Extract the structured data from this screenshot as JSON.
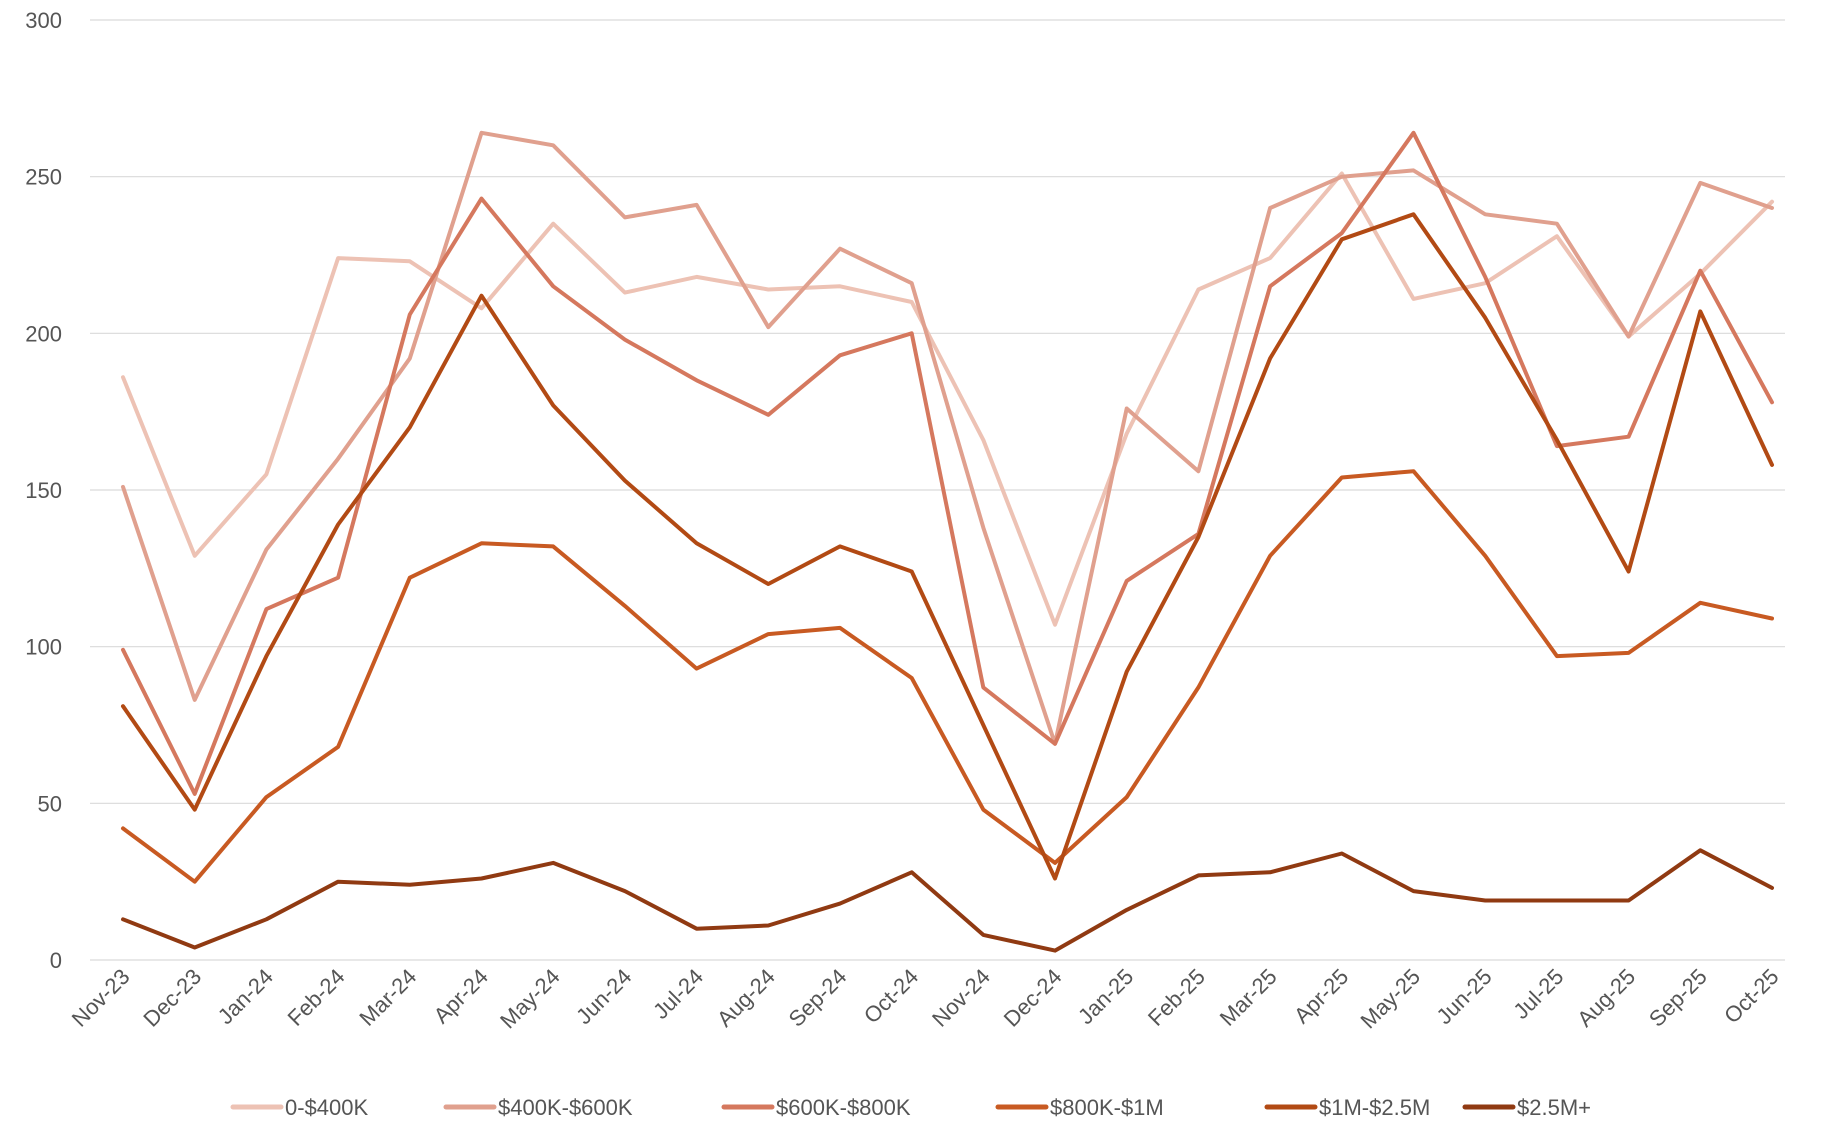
{
  "chart_data": {
    "type": "line",
    "title": "",
    "xlabel": "",
    "ylabel": "",
    "ylim": [
      0,
      300
    ],
    "yticks": [
      0,
      50,
      100,
      150,
      200,
      250,
      300
    ],
    "grid": true,
    "legend_position": "bottom",
    "categories": [
      "Nov-23",
      "Dec-23",
      "Jan-24",
      "Feb-24",
      "Mar-24",
      "Apr-24",
      "May-24",
      "Jun-24",
      "Jul-24",
      "Aug-24",
      "Sep-24",
      "Oct-24",
      "Nov-24",
      "Dec-24",
      "Jan-25",
      "Feb-25",
      "Mar-25",
      "Apr-25",
      "May-25",
      "Jun-25",
      "Jul-25",
      "Aug-25",
      "Sep-25",
      "Oct-25"
    ],
    "series": [
      {
        "name": "0-$400K",
        "color": "#edc2b4",
        "values": [
          186,
          129,
          155,
          224,
          223,
          208,
          235,
          213,
          218,
          214,
          215,
          210,
          166,
          107,
          168,
          214,
          224,
          251,
          211,
          216,
          231,
          199,
          219,
          242
        ]
      },
      {
        "name": "$400K-$600K",
        "color": "#e0a08e",
        "values": [
          151,
          83,
          131,
          160,
          192,
          264,
          260,
          237,
          241,
          202,
          227,
          216,
          138,
          69,
          176,
          156,
          240,
          250,
          252,
          238,
          235,
          199,
          248,
          240
        ]
      },
      {
        "name": "$600K-$800K",
        "color": "#d5785e",
        "values": [
          99,
          53,
          112,
          122,
          206,
          243,
          215,
          198,
          185,
          174,
          193,
          200,
          87,
          69,
          121,
          136,
          215,
          232,
          264,
          218,
          164,
          167,
          220,
          178
        ]
      },
      {
        "name": "$800K-$1M",
        "color": "#c85a22",
        "values": [
          42,
          25,
          52,
          68,
          122,
          133,
          132,
          113,
          93,
          104,
          106,
          90,
          48,
          31,
          52,
          87,
          129,
          154,
          156,
          129,
          97,
          98,
          114,
          109
        ]
      },
      {
        "name": "$1M-$2.5M",
        "color": "#b24a14",
        "values": [
          81,
          48,
          97,
          139,
          170,
          212,
          177,
          153,
          133,
          120,
          132,
          124,
          75,
          26,
          92,
          135,
          192,
          230,
          238,
          205,
          166,
          124,
          207,
          158
        ]
      },
      {
        "name": "$2.5M+",
        "color": "#903a12",
        "values": [
          13,
          4,
          13,
          25,
          24,
          26,
          31,
          22,
          10,
          11,
          18,
          28,
          8,
          3,
          16,
          27,
          28,
          34,
          22,
          19,
          19,
          19,
          35,
          23
        ]
      }
    ]
  }
}
